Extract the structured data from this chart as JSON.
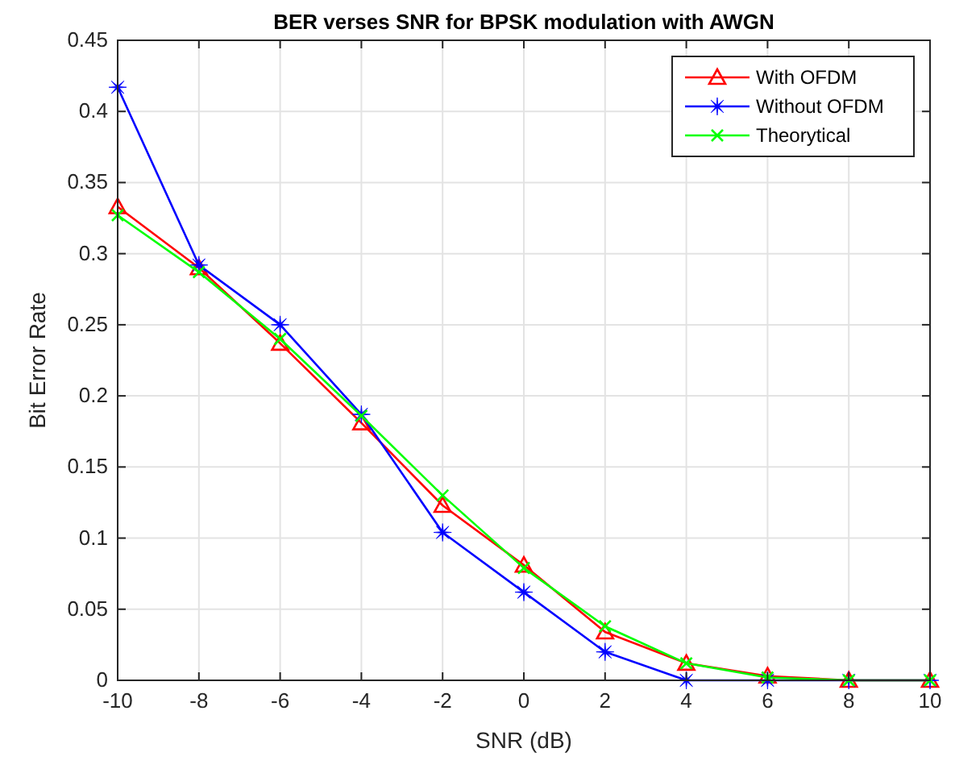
{
  "chart_data": {
    "type": "line",
    "title": "BER verses SNR for BPSK modulation with AWGN",
    "xlabel": "SNR (dB)",
    "ylabel": "Bit Error Rate",
    "x": [
      -10,
      -8,
      -6,
      -4,
      -2,
      0,
      2,
      4,
      6,
      8,
      10
    ],
    "series": [
      {
        "name": "With OFDM",
        "color": "#ff0000",
        "marker": "triangle",
        "values": [
          0.333,
          0.29,
          0.237,
          0.181,
          0.123,
          0.081,
          0.034,
          0.012,
          0.003,
          0,
          0
        ]
      },
      {
        "name": "Without OFDM",
        "color": "#0000ff",
        "marker": "star",
        "values": [
          0.417,
          0.292,
          0.25,
          0.187,
          0.104,
          0.062,
          0.02,
          0,
          0,
          0,
          0
        ]
      },
      {
        "name": "Theorytical",
        "color": "#00ff00",
        "marker": "cross",
        "values": [
          0.327,
          0.287,
          0.24,
          0.186,
          0.13,
          0.079,
          0.038,
          0.012,
          0.002,
          0,
          0
        ]
      }
    ],
    "xlim": [
      -10,
      10
    ],
    "xticks": [
      -10,
      -8,
      -6,
      -4,
      -2,
      0,
      2,
      4,
      6,
      8,
      10
    ],
    "ylim": [
      0,
      0.45
    ],
    "yticks": [
      0,
      0.05,
      0.1,
      0.15,
      0.2,
      0.25,
      0.3,
      0.35,
      0.4,
      0.45
    ],
    "grid": true,
    "legend": "top right",
    "line_style": "solid"
  }
}
